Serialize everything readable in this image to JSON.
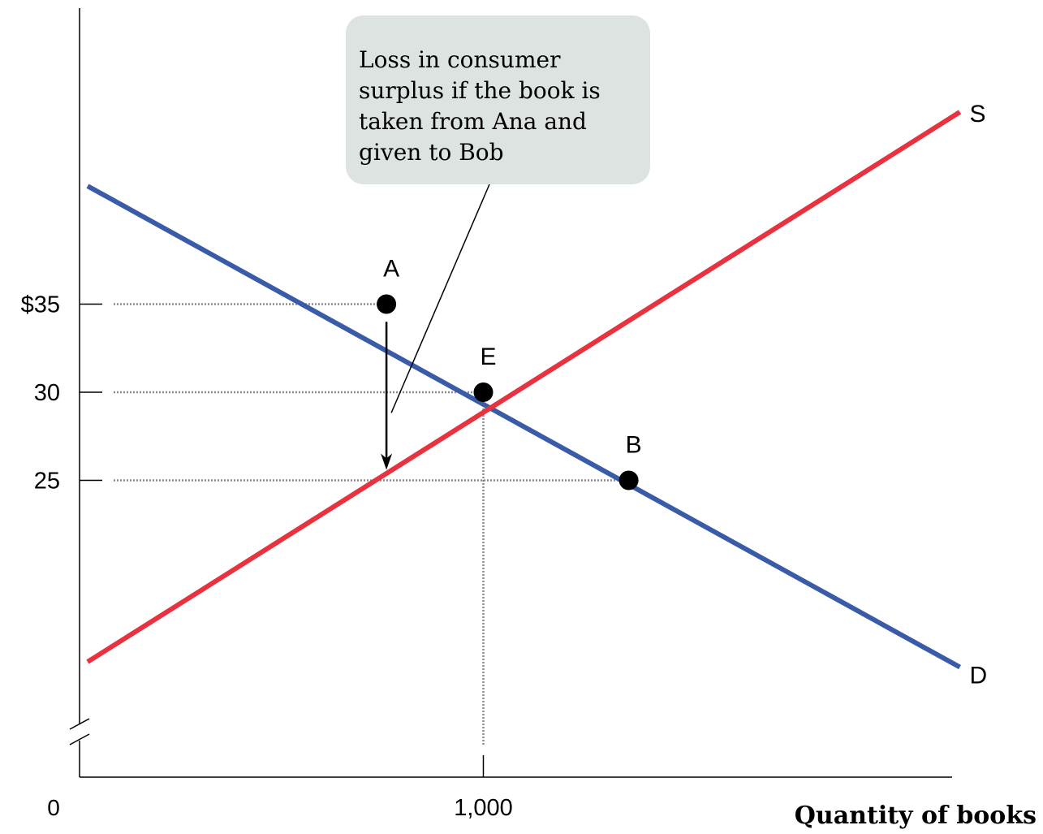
{
  "chart_data": {
    "type": "line",
    "xlabel": "Quantity of books",
    "ylabel": "",
    "origin_label": "0",
    "x_ticks": [
      {
        "value": 1000,
        "label": "1,000"
      }
    ],
    "y_ticks": [
      {
        "value": 35,
        "label": "$35"
      },
      {
        "value": 30,
        "label": "30"
      },
      {
        "value": 25,
        "label": "25"
      }
    ],
    "y_axis_break": true,
    "xlim": [
      0,
      2200
    ],
    "series": [
      {
        "name": "D",
        "color": "#3a5ba8",
        "x": [
          20,
          2180
        ],
        "y": [
          41.7,
          14.4
        ]
      },
      {
        "name": "S",
        "color": "#e8323f",
        "x": [
          20,
          2180
        ],
        "y": [
          14.7,
          45.9
        ]
      }
    ],
    "points": [
      {
        "label": "A",
        "x": 760,
        "y": 35
      },
      {
        "label": "E",
        "x": 1000,
        "y": 30
      },
      {
        "label": "B",
        "x": 1360,
        "y": 25
      }
    ],
    "arrow": {
      "x": 760,
      "from_y": 34.0,
      "to_y": 25.6
    },
    "annotation": {
      "lines": [
        "Loss in consumer",
        "surplus if the book is",
        "taken from Ana and",
        "given to Bob"
      ],
      "box_color": "#dce3e1",
      "points_to": {
        "x": 760,
        "y": 29.2
      }
    }
  }
}
